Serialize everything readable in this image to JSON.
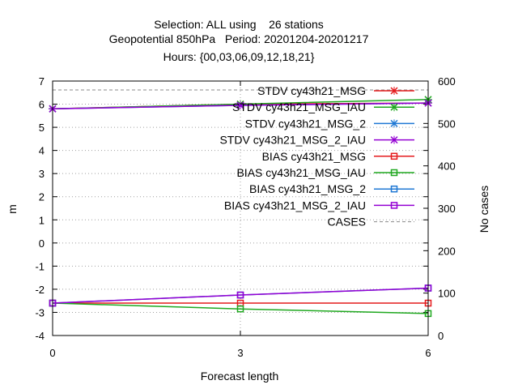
{
  "chart_data": {
    "type": "line",
    "title_lines": [
      "Selection: ALL using    26 stations",
      "Geopotential 850hPa   Period: 20201204-20201217",
      "Hours: {00,03,06,09,12,18,21}"
    ],
    "xlabel": "Forecast length",
    "ylabel": "m",
    "y2label": "No cases",
    "x": [
      0,
      3,
      6
    ],
    "xticks": [
      "0",
      "3",
      "6"
    ],
    "ylim": [
      -4,
      7
    ],
    "yticks": [
      "-4",
      "-3",
      "-2",
      "-1",
      "0",
      "1",
      "2",
      "3",
      "4",
      "5",
      "6",
      "7"
    ],
    "y2lim": [
      0,
      600
    ],
    "y2ticks": [
      "0",
      "100",
      "200",
      "300",
      "400",
      "500",
      "600"
    ],
    "grid": true,
    "legend_position": "top-right",
    "series": [
      {
        "name": "STDV cy43h21_MSG",
        "axis": "y",
        "color": "#e41a1c",
        "marker": "x",
        "values": [
          5.8,
          6.0,
          6.05
        ]
      },
      {
        "name": "STDV cy43h21_MSG_IAU",
        "axis": "y",
        "color": "#1fa81f",
        "marker": "x",
        "values": [
          5.8,
          6.0,
          6.2
        ]
      },
      {
        "name": "STDV cy43h21_MSG_2",
        "axis": "y",
        "color": "#1f78d4",
        "marker": "x",
        "values": [
          5.8,
          5.95,
          6.05
        ]
      },
      {
        "name": "STDV cy43h21_MSG_2_IAU",
        "axis": "y",
        "color": "#9400d3",
        "marker": "x",
        "values": [
          5.8,
          5.95,
          6.05
        ]
      },
      {
        "name": "BIAS cy43h21_MSG",
        "axis": "y",
        "color": "#e41a1c",
        "marker": "square",
        "values": [
          -2.6,
          -2.6,
          -2.6
        ]
      },
      {
        "name": "BIAS cy43h21_MSG_IAU",
        "axis": "y",
        "color": "#1fa81f",
        "marker": "square",
        "values": [
          -2.6,
          -2.85,
          -3.05
        ]
      },
      {
        "name": "BIAS cy43h21_MSG_2",
        "axis": "y",
        "color": "#1f78d4",
        "marker": "square",
        "values": [
          -2.6,
          -2.25,
          -1.95
        ]
      },
      {
        "name": "BIAS cy43h21_MSG_2_IAU",
        "axis": "y",
        "color": "#9400d3",
        "marker": "square",
        "values": [
          -2.6,
          -2.25,
          -1.95
        ]
      },
      {
        "name": "CASES",
        "axis": "y2",
        "color": "#888888",
        "marker": "none",
        "dashed": true,
        "values": [
          579,
          579,
          579
        ]
      }
    ]
  }
}
